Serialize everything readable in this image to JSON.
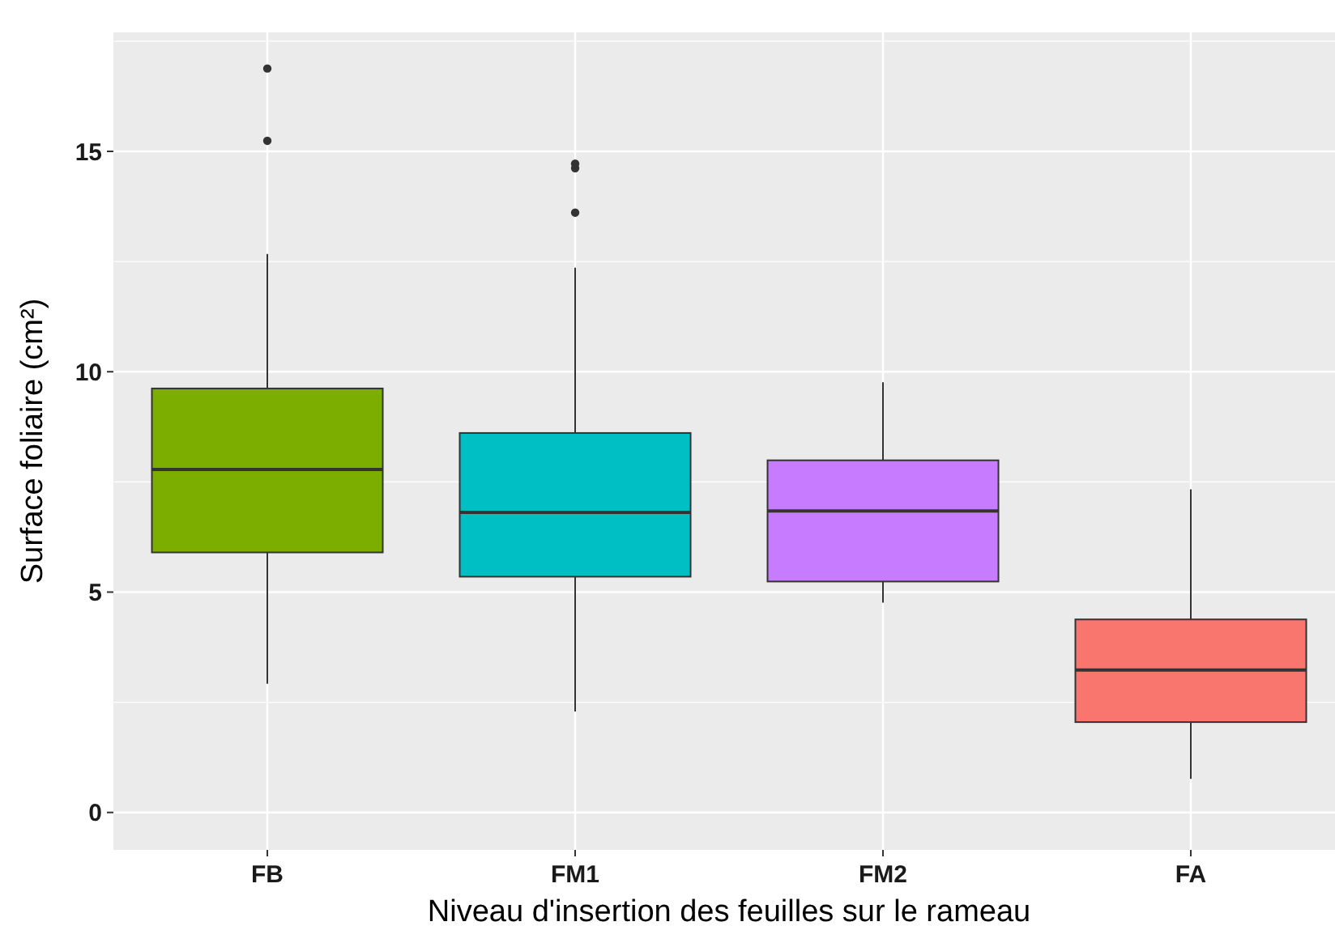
{
  "chart_data": {
    "type": "box",
    "xlabel": "Niveau d'insertion des feuilles sur le rameau",
    "ylabel": "Surface foliaire (cm²)",
    "categories": [
      "FB",
      "FM1",
      "FM2",
      "FA"
    ],
    "colors": [
      "#7cae00",
      "#00bfc4",
      "#c77cff",
      "#f8766d"
    ],
    "boxes": [
      {
        "low": 2.92,
        "q1": 5.9,
        "median": 7.78,
        "q3": 9.62,
        "high": 12.67,
        "outliers": [
          15.24,
          16.88
        ]
      },
      {
        "low": 2.29,
        "q1": 5.35,
        "median": 6.81,
        "q3": 8.61,
        "high": 12.36,
        "outliers": [
          13.61,
          14.62,
          14.72
        ]
      },
      {
        "low": 4.76,
        "q1": 5.24,
        "median": 6.84,
        "q3": 7.99,
        "high": 9.76
      },
      {
        "low": 0.76,
        "q1": 2.05,
        "median": 3.23,
        "q3": 4.38,
        "high": 7.33
      }
    ],
    "ylim": [
      -0.85,
      17.7
    ],
    "yticks": [
      0,
      {
        "value": 2.5,
        "label": null
      },
      5,
      {
        "value": 7.5,
        "label": null
      },
      10,
      {
        "value": 12.5,
        "label": null
      },
      15,
      {
        "value": 17.5,
        "label": null
      }
    ],
    "grid": true
  }
}
